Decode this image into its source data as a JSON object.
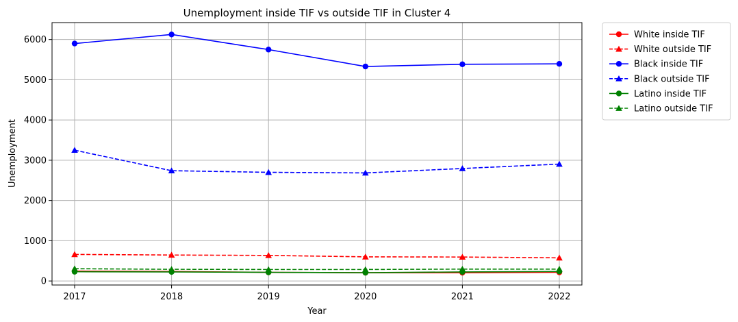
{
  "chart_data": {
    "type": "line",
    "title": "Unemployment inside TIF vs outside TIF in Cluster 4",
    "xlabel": "Year",
    "ylabel": "Unemployment",
    "x": [
      2017,
      2018,
      2019,
      2020,
      2021,
      2022
    ],
    "x_tick_labels": [
      "2017",
      "2018",
      "2019",
      "2020",
      "2021",
      "2022"
    ],
    "ylim": [
      -100,
      6420
    ],
    "y_ticks": [
      0,
      1000,
      2000,
      3000,
      4000,
      5000,
      6000
    ],
    "y_tick_labels": [
      "0",
      "1000",
      "2000",
      "3000",
      "4000",
      "5000",
      "6000"
    ],
    "grid": true,
    "legend_position": "outside-top-right",
    "series": [
      {
        "name": "White inside TIF",
        "color": "#ff0000",
        "dash": "solid",
        "marker": "circle",
        "values": [
          245,
          235,
          215,
          205,
          205,
          215
        ]
      },
      {
        "name": "White outside TIF",
        "color": "#ff0000",
        "dash": "dashed",
        "marker": "triangle",
        "values": [
          660,
          645,
          635,
          600,
          595,
          575
        ]
      },
      {
        "name": "Black inside TIF",
        "color": "#0000ff",
        "dash": "solid",
        "marker": "circle",
        "values": [
          5900,
          6125,
          5750,
          5330,
          5385,
          5395
        ]
      },
      {
        "name": "Black outside TIF",
        "color": "#0000ff",
        "dash": "dashed",
        "marker": "triangle",
        "values": [
          3250,
          2740,
          2700,
          2685,
          2795,
          2905
        ]
      },
      {
        "name": "Latino inside TIF",
        "color": "#008000",
        "dash": "solid",
        "marker": "circle",
        "values": [
          230,
          225,
          215,
          205,
          225,
          235
        ]
      },
      {
        "name": "Latino outside TIF",
        "color": "#008000",
        "dash": "dashed",
        "marker": "triangle",
        "values": [
          305,
          290,
          285,
          285,
          295,
          295
        ]
      }
    ]
  }
}
